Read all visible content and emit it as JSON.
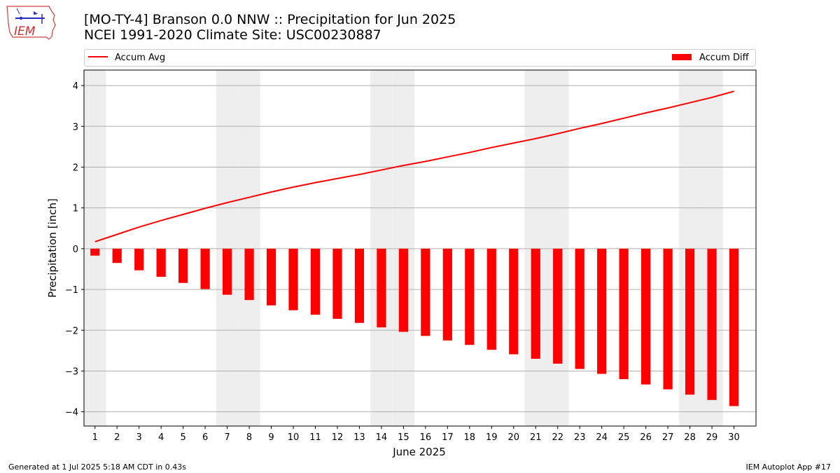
{
  "header": {
    "title_line1": "[MO-TY-4] Branson 0.0 NNW :: Precipitation for Jun 2025",
    "title_line2": "NCEI 1991-2020 Climate Site: USC00230887"
  },
  "logo": {
    "text": "IEM",
    "icon": "iem-iowa-logo-icon"
  },
  "footer": {
    "left": "Generated at 1 Jul 2025 5:18 AM CDT in 0.43s",
    "right": "IEM Autoplot App #17"
  },
  "colors": {
    "series": "#ff0000",
    "weekend_shade": "#eeeeee",
    "grid": "#b0b0b0"
  },
  "chart_data": {
    "type": "bar",
    "xlabel": "June 2025",
    "ylabel": "Precipitation [inch]",
    "ylim": [
      -4.35,
      4.38
    ],
    "yticks": [
      -4,
      -3,
      -2,
      -1,
      0,
      1,
      2,
      3,
      4
    ],
    "grid": "horizontal",
    "legend": {
      "placement": "top",
      "entries": [
        "Accum Avg",
        "Accum Diff"
      ]
    },
    "weekend_days": [
      1,
      7,
      8,
      14,
      15,
      21,
      22,
      28,
      29
    ],
    "categories": [
      1,
      2,
      3,
      4,
      5,
      6,
      7,
      8,
      9,
      10,
      11,
      12,
      13,
      14,
      15,
      16,
      17,
      18,
      19,
      20,
      21,
      22,
      23,
      24,
      25,
      26,
      27,
      28,
      29,
      30
    ],
    "series": [
      {
        "name": "Accum Avg",
        "type": "line",
        "values": [
          0.17,
          0.35,
          0.53,
          0.69,
          0.84,
          0.99,
          1.13,
          1.26,
          1.39,
          1.51,
          1.62,
          1.72,
          1.82,
          1.93,
          2.04,
          2.14,
          2.25,
          2.36,
          2.48,
          2.59,
          2.7,
          2.82,
          2.95,
          3.07,
          3.2,
          3.33,
          3.45,
          3.58,
          3.71,
          3.86
        ]
      },
      {
        "name": "Accum Diff",
        "type": "bar",
        "values": [
          -0.17,
          -0.35,
          -0.53,
          -0.69,
          -0.84,
          -0.99,
          -1.13,
          -1.26,
          -1.39,
          -1.51,
          -1.62,
          -1.72,
          -1.82,
          -1.93,
          -2.04,
          -2.14,
          -2.25,
          -2.36,
          -2.48,
          -2.59,
          -2.7,
          -2.82,
          -2.95,
          -3.07,
          -3.2,
          -3.33,
          -3.45,
          -3.58,
          -3.71,
          -3.86
        ]
      }
    ]
  }
}
